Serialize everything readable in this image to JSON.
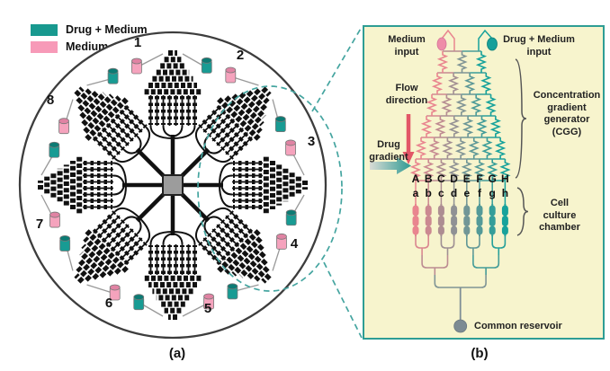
{
  "legend": {
    "items": [
      {
        "label": "Drug + Medium",
        "color": "#18998f"
      },
      {
        "label": "Medium",
        "color": "#f79ab8"
      }
    ]
  },
  "panel_a": {
    "label": "(a)",
    "unit_numbers": [
      "1",
      "2",
      "3",
      "4",
      "5",
      "6",
      "7",
      "8"
    ]
  },
  "panel_b": {
    "label": "(b)",
    "medium_input_line1": "Medium",
    "medium_input_line2": "input",
    "drug_medium_input_line1": "Drug + Medium",
    "drug_medium_input_line2": "input",
    "flow_direction_line1": "Flow",
    "flow_direction_line2": "direction",
    "drug_gradient_line1": "Drug",
    "drug_gradient_line2": "gradient",
    "cgg_line1": "Concentration",
    "cgg_line2": "gradient",
    "cgg_line3": "generator",
    "cgg_line4": "(CGG)",
    "cell_chamber_line1": "Cell",
    "cell_chamber_line2": "culture",
    "cell_chamber_line3": "chamber",
    "common_reservoir": "Common reservoir",
    "chambers": {
      "upper": [
        "A",
        "B",
        "C",
        "D",
        "E",
        "F",
        "G",
        "H"
      ],
      "lower": [
        "a",
        "b",
        "c",
        "d",
        "e",
        "f",
        "g",
        "h"
      ]
    }
  },
  "colors": {
    "teal": "#18998f",
    "pink": "#f79ab8",
    "channel_pink": "#e9858f",
    "channel_teal": "#17a29b",
    "panel_bg": "#f7f4cd",
    "panel_border": "#2e9d94",
    "flow_arrow_red": "#e25667",
    "reservoir_gray": "#7d8b93",
    "chamber_gradient": [
      "#e9858f",
      "#cb8991",
      "#ad8d92",
      "#8f9194",
      "#719696",
      "#539a98",
      "#359e99",
      "#17a29b"
    ]
  }
}
